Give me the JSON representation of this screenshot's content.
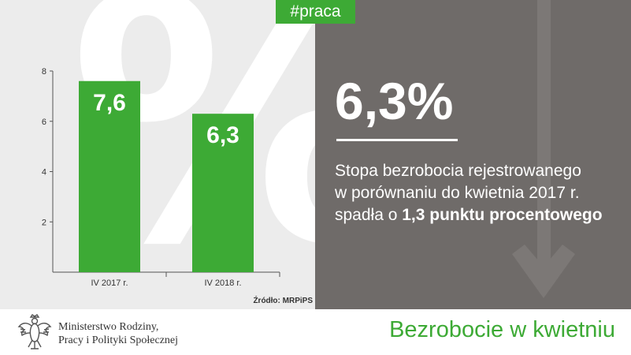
{
  "tag": "#praca",
  "background_symbol": "%",
  "headline_value": "6,3%",
  "description": {
    "line1": "Stopa bezrobocia rejestrowanego",
    "line2": "w porównaniu do kwietnia 2017 r.",
    "line3_prefix": "spadła o ",
    "line3_bold": "1,3 punktu procentowego"
  },
  "source": "Źródło: MRPiPS",
  "footer": {
    "ministry_line1": "Ministerstwo Rodziny,",
    "ministry_line2": "Pracy i Polityki Społecznej",
    "title": "Bezrobocie w kwietniu"
  },
  "colors": {
    "accent_green": "#3daa35",
    "dark_panel": "#6f6b69",
    "light_panel": "#ececec"
  },
  "icons": [
    "polish-eagle-emblem-icon",
    "down-arrow-icon"
  ],
  "chart_data": {
    "type": "bar",
    "categories": [
      "IV 2017 r.",
      "IV 2018 r."
    ],
    "values": [
      7.6,
      6.3
    ],
    "value_labels": [
      "7,6",
      "6,3"
    ],
    "ylim": [
      0,
      8
    ],
    "yticks": [
      2,
      4,
      6,
      8
    ],
    "title": "",
    "xlabel": "",
    "ylabel": "",
    "grid": false
  }
}
